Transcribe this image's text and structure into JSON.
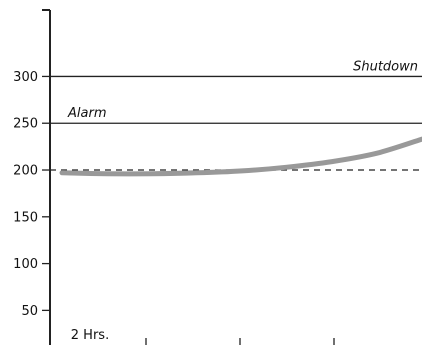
{
  "chart_data": {
    "type": "line",
    "title": "",
    "xlabel": "",
    "ylabel": "",
    "ylim": [
      13,
      371
    ],
    "xlim": [
      0,
      8
    ],
    "y_ticks": [
      50,
      100,
      150,
      200,
      250,
      300
    ],
    "x_tick_labels": [
      "2 Hrs.",
      "",
      "",
      ""
    ],
    "grid": false,
    "reference_lines": [
      {
        "label": "Shutdown",
        "value": 300,
        "style": "solid",
        "color": "#222222"
      },
      {
        "label": "Alarm",
        "value": 250,
        "style": "solid",
        "color": "#222222"
      },
      {
        "label": "",
        "value": 200,
        "style": "dashed",
        "color": "#222222"
      }
    ],
    "series": [
      {
        "color": "#999999",
        "x": [
          0,
          1,
          2,
          3,
          4,
          5,
          6,
          7,
          8
        ],
        "values": [
          197,
          196,
          196,
          197,
          199,
          203,
          209,
          218,
          233
        ]
      }
    ]
  }
}
